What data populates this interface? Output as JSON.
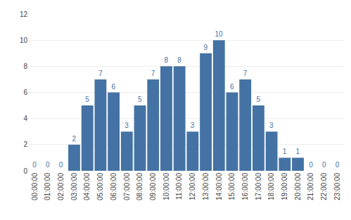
{
  "chart_data": {
    "type": "bar",
    "categories": [
      "00:00:00",
      "01:00:00",
      "02:00:00",
      "03:00:00",
      "04:00:00",
      "05:00:00",
      "06:00:00",
      "07:00:00",
      "08:00:00",
      "09:00:00",
      "10:00:00",
      "11:00:00",
      "12:00:00",
      "13:00:00",
      "14:00:00",
      "15:00:00",
      "16:00:00",
      "17:00:00",
      "18:00:00",
      "19:00:00",
      "20:00:00",
      "21:00:00",
      "22:00:00",
      "23:00:00"
    ],
    "values": [
      0,
      0,
      0,
      2,
      5,
      7,
      6,
      3,
      5,
      7,
      8,
      8,
      3,
      9,
      10,
      6,
      7,
      5,
      3,
      1,
      1,
      0,
      0,
      0
    ],
    "color": "#4472a4",
    "ylim": [
      0,
      12
    ],
    "yticks": [
      0,
      2,
      4,
      6,
      8,
      10,
      12
    ],
    "grid": true,
    "data_labels": true
  }
}
